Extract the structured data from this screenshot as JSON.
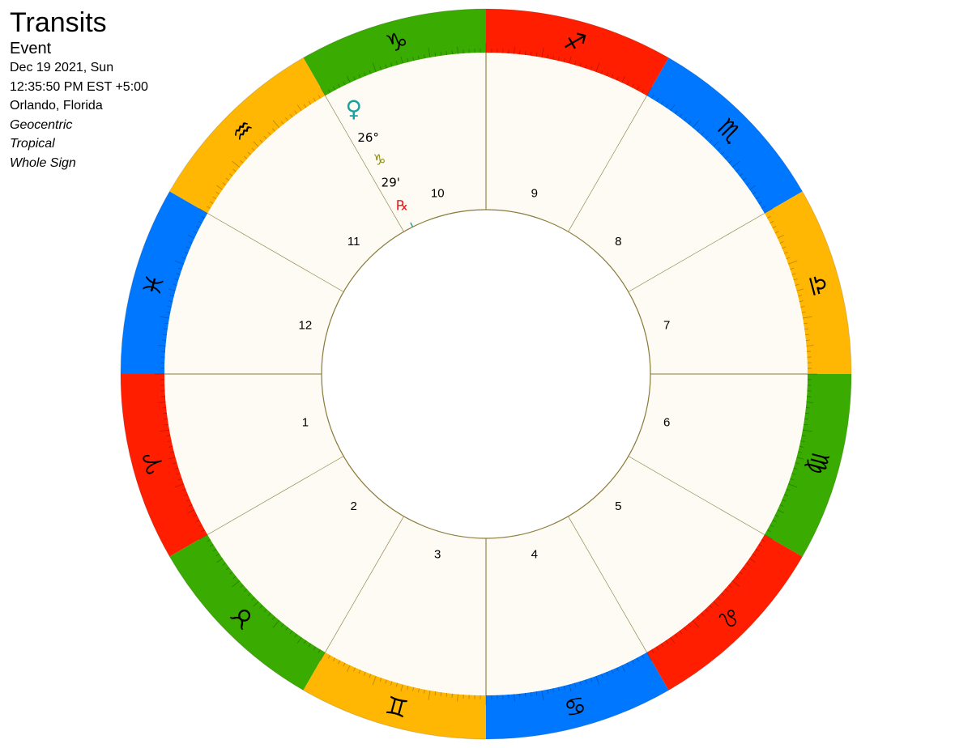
{
  "header": {
    "title": "Transits",
    "chart_kind": "Event",
    "date": "Dec 19 2021, Sun",
    "time": "12:35:50 PM EST +5:00",
    "location": "Orlando, Florida",
    "perspective": "Geocentric",
    "zodiac": "Tropical",
    "house_system": "Whole Sign"
  },
  "colors": {
    "fire": "#ff1f00",
    "earth": "#3aab00",
    "air": "#ffb703",
    "water": "#0077ff",
    "house_fill": "#fdfbf3",
    "house_line": "#8a7a3a",
    "venus": "#14a3a3",
    "capricorn_small": "#8a8a10",
    "retrograde": "#ee1c1c"
  },
  "signs": [
    {
      "name": "Aries",
      "glyph": "♈",
      "element": "fire"
    },
    {
      "name": "Taurus",
      "glyph": "♉",
      "element": "earth"
    },
    {
      "name": "Gemini",
      "glyph": "♊",
      "element": "air"
    },
    {
      "name": "Cancer",
      "glyph": "♋",
      "element": "water"
    },
    {
      "name": "Leo",
      "glyph": "♌",
      "element": "fire"
    },
    {
      "name": "Virgo",
      "glyph": "♍",
      "element": "earth"
    },
    {
      "name": "Libra",
      "glyph": "♎",
      "element": "air"
    },
    {
      "name": "Scorpio",
      "glyph": "♏",
      "element": "water"
    },
    {
      "name": "Sagittarius",
      "glyph": "♐",
      "element": "fire"
    },
    {
      "name": "Capricorn",
      "glyph": "♑",
      "element": "earth"
    },
    {
      "name": "Aquarius",
      "glyph": "♒",
      "element": "air"
    },
    {
      "name": "Pisces",
      "glyph": "♓",
      "element": "water"
    }
  ],
  "houses": [
    "1",
    "2",
    "3",
    "4",
    "5",
    "6",
    "7",
    "8",
    "9",
    "10",
    "11",
    "12"
  ],
  "planets": [
    {
      "name": "Venus",
      "glyph": "♀",
      "degree": "26°",
      "sign_glyph": "♑",
      "minute": "29'",
      "retrograde": "℞",
      "longitude": 296.48
    }
  ]
}
